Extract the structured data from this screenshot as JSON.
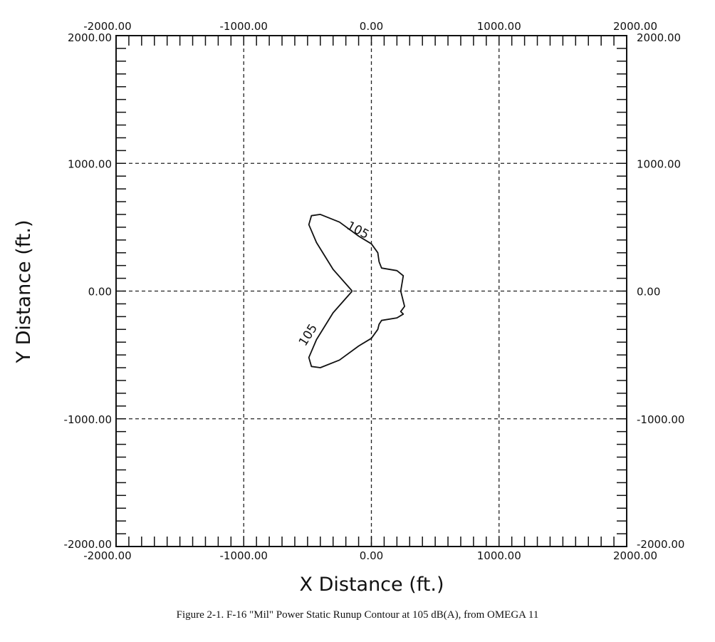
{
  "chart_data": {
    "type": "line",
    "title": "",
    "xlabel": "X Distance (ft.)",
    "ylabel": "Y Distance (ft.)",
    "xlim": [
      -2000,
      2000
    ],
    "ylim": [
      -2000,
      2000
    ],
    "major_ticks": [
      -2000,
      -1000,
      0,
      1000,
      2000
    ],
    "tick_labels": [
      "-2000.00",
      "-1000.00",
      "0.00",
      "1000.00",
      "2000.00"
    ],
    "minor_tick_step": 100,
    "grid": "dashed at major ticks",
    "series": [
      {
        "contour_level": "105",
        "x": [
          -150,
          -300,
          -430,
          -490,
          -470,
          -400,
          -250,
          -100,
          0,
          50,
          60,
          80,
          200,
          250,
          230,
          260,
          230,
          250,
          200,
          80,
          60,
          50,
          0,
          -100,
          -250,
          -400,
          -470,
          -490,
          -430,
          -300,
          -150
        ],
        "y": [
          0,
          170,
          380,
          520,
          590,
          600,
          540,
          430,
          370,
          300,
          230,
          180,
          160,
          120,
          0,
          -120,
          -160,
          -180,
          -210,
          -230,
          -260,
          -300,
          -370,
          -430,
          -540,
          -600,
          -590,
          -520,
          -380,
          -170,
          0
        ]
      }
    ],
    "contour_labels": [
      {
        "text": "105",
        "x": -120,
        "y": 450
      },
      {
        "text": "105",
        "x": -470,
        "y": -360
      }
    ]
  },
  "caption": "Figure 2-1.   F-16 \"Mil\" Power Static Runup Contour at 105 dB(A), from OMEGA 11"
}
